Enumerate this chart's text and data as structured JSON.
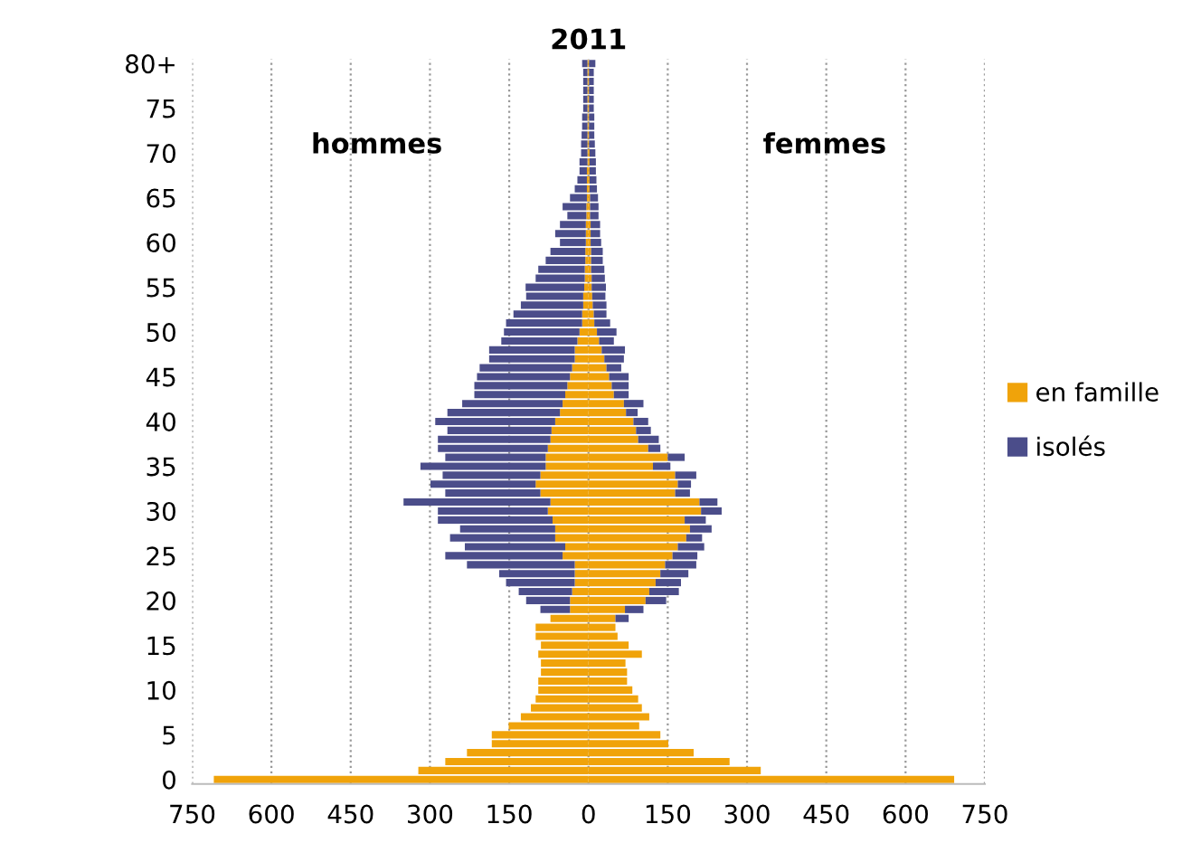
{
  "chart_data": {
    "type": "bar",
    "orientation": "horizontal",
    "stacked": true,
    "title": "2011",
    "categories": [
      "80+",
      null,
      null,
      null,
      null,
      "75",
      null,
      null,
      null,
      null,
      "70",
      null,
      null,
      null,
      null,
      "65",
      null,
      null,
      null,
      null,
      "60",
      null,
      null,
      null,
      null,
      "55",
      null,
      null,
      null,
      null,
      "50",
      null,
      null,
      null,
      null,
      "45",
      null,
      null,
      null,
      null,
      "40",
      null,
      null,
      null,
      null,
      "35",
      null,
      null,
      null,
      null,
      "30",
      null,
      null,
      null,
      null,
      "25",
      null,
      null,
      null,
      null,
      "20",
      null,
      null,
      null,
      null,
      "15",
      null,
      null,
      null,
      null,
      "10",
      null,
      null,
      null,
      null,
      "5",
      null,
      null,
      null,
      null,
      "0"
    ],
    "series": [
      {
        "color": "#f0a30a",
        "values": [
          -2,
          -2,
          -2,
          -2,
          -2,
          -2,
          -2,
          -2,
          -2,
          -2,
          -2,
          -2,
          -3,
          -3,
          -3,
          -3,
          -4,
          -4,
          -5,
          -5,
          -5,
          -6,
          -6,
          -7,
          -7,
          -8,
          -10,
          -10,
          -12,
          -12,
          -17,
          -21,
          -26,
          -26,
          -31,
          -35,
          -40,
          -44,
          -49,
          -54,
          -63,
          -70,
          -72,
          -77,
          -81,
          -81,
          -91,
          -100,
          -91,
          -72,
          -77,
          -68,
          -63,
          -63,
          -44,
          -49,
          -26,
          -26,
          -26,
          -31,
          -35,
          -35,
          -72,
          -100,
          -100,
          -90,
          -95,
          -90,
          -90,
          -95,
          -95,
          -100,
          -109,
          -128,
          -151,
          -183,
          -183,
          -230,
          -271,
          -322,
          -709
        ]
      },
      {
        "color": "#4b4d8a",
        "values": [
          -10,
          -8,
          -8,
          -8,
          -8,
          -8,
          -10,
          -10,
          -11,
          -12,
          -12,
          -15,
          -14,
          -18,
          -23,
          -32,
          -45,
          -36,
          -49,
          -58,
          -49,
          -66,
          -75,
          -88,
          -93,
          -111,
          -108,
          -118,
          -130,
          -144,
          -143,
          -144,
          -162,
          -162,
          -175,
          -176,
          -176,
          -172,
          -190,
          -213,
          -227,
          -197,
          -213,
          -208,
          -190,
          -237,
          -185,
          -199,
          -180,
          -278,
          -208,
          -217,
          -180,
          -199,
          -190,
          -222,
          -204,
          -143,
          -130,
          -101,
          -83,
          -56,
          0,
          0,
          0,
          0,
          0,
          0,
          0,
          0,
          0,
          0,
          0,
          0,
          0,
          0,
          0,
          0,
          0,
          0,
          0
        ]
      },
      {
        "name": "en famille",
        "color": "#f0a30a",
        "values": [
          1,
          1,
          1,
          1,
          1,
          1,
          1,
          1,
          1,
          1,
          2,
          2,
          2,
          2,
          2,
          3,
          3,
          3,
          4,
          4,
          4,
          5,
          5,
          5,
          6,
          6,
          7,
          8,
          10,
          11,
          16,
          20,
          25,
          30,
          34,
          39,
          44,
          48,
          67,
          71,
          85,
          90,
          94,
          113,
          150,
          122,
          164,
          169,
          164,
          210,
          213,
          182,
          192,
          185,
          169,
          159,
          145,
          136,
          127,
          115,
          108,
          69,
          51,
          51,
          55,
          76,
          101,
          70,
          73,
          73,
          83,
          94,
          101,
          115,
          96,
          136,
          151,
          199,
          267,
          326,
          692
        ]
      },
      {
        "name": "isolés",
        "color": "#4b4d8a",
        "values": [
          12,
          9,
          9,
          9,
          9,
          9,
          10,
          10,
          10,
          11,
          11,
          12,
          12,
          13,
          14,
          15,
          16,
          16,
          18,
          18,
          20,
          22,
          22,
          25,
          25,
          27,
          25,
          26,
          24,
          30,
          37,
          28,
          44,
          37,
          28,
          37,
          32,
          28,
          37,
          22,
          28,
          28,
          39,
          23,
          32,
          33,
          40,
          25,
          28,
          34,
          39,
          40,
          41,
          30,
          50,
          47,
          59,
          53,
          48,
          56,
          39,
          35,
          25,
          0,
          0,
          0,
          0,
          0,
          0,
          0,
          0,
          0,
          0,
          0,
          0,
          0,
          0,
          0,
          0,
          0,
          0
        ]
      }
    ],
    "xlim": [
      -750,
      750
    ],
    "xticks": [
      {
        "value": -750,
        "label": "750"
      },
      {
        "value": -600,
        "label": "600"
      },
      {
        "value": -450,
        "label": "450"
      },
      {
        "value": -300,
        "label": "300"
      },
      {
        "value": -150,
        "label": "150"
      },
      0,
      150,
      300,
      450,
      600,
      750
    ],
    "grid": "x",
    "legend": "right",
    "annotations": [
      "hommes",
      "femmes"
    ]
  }
}
